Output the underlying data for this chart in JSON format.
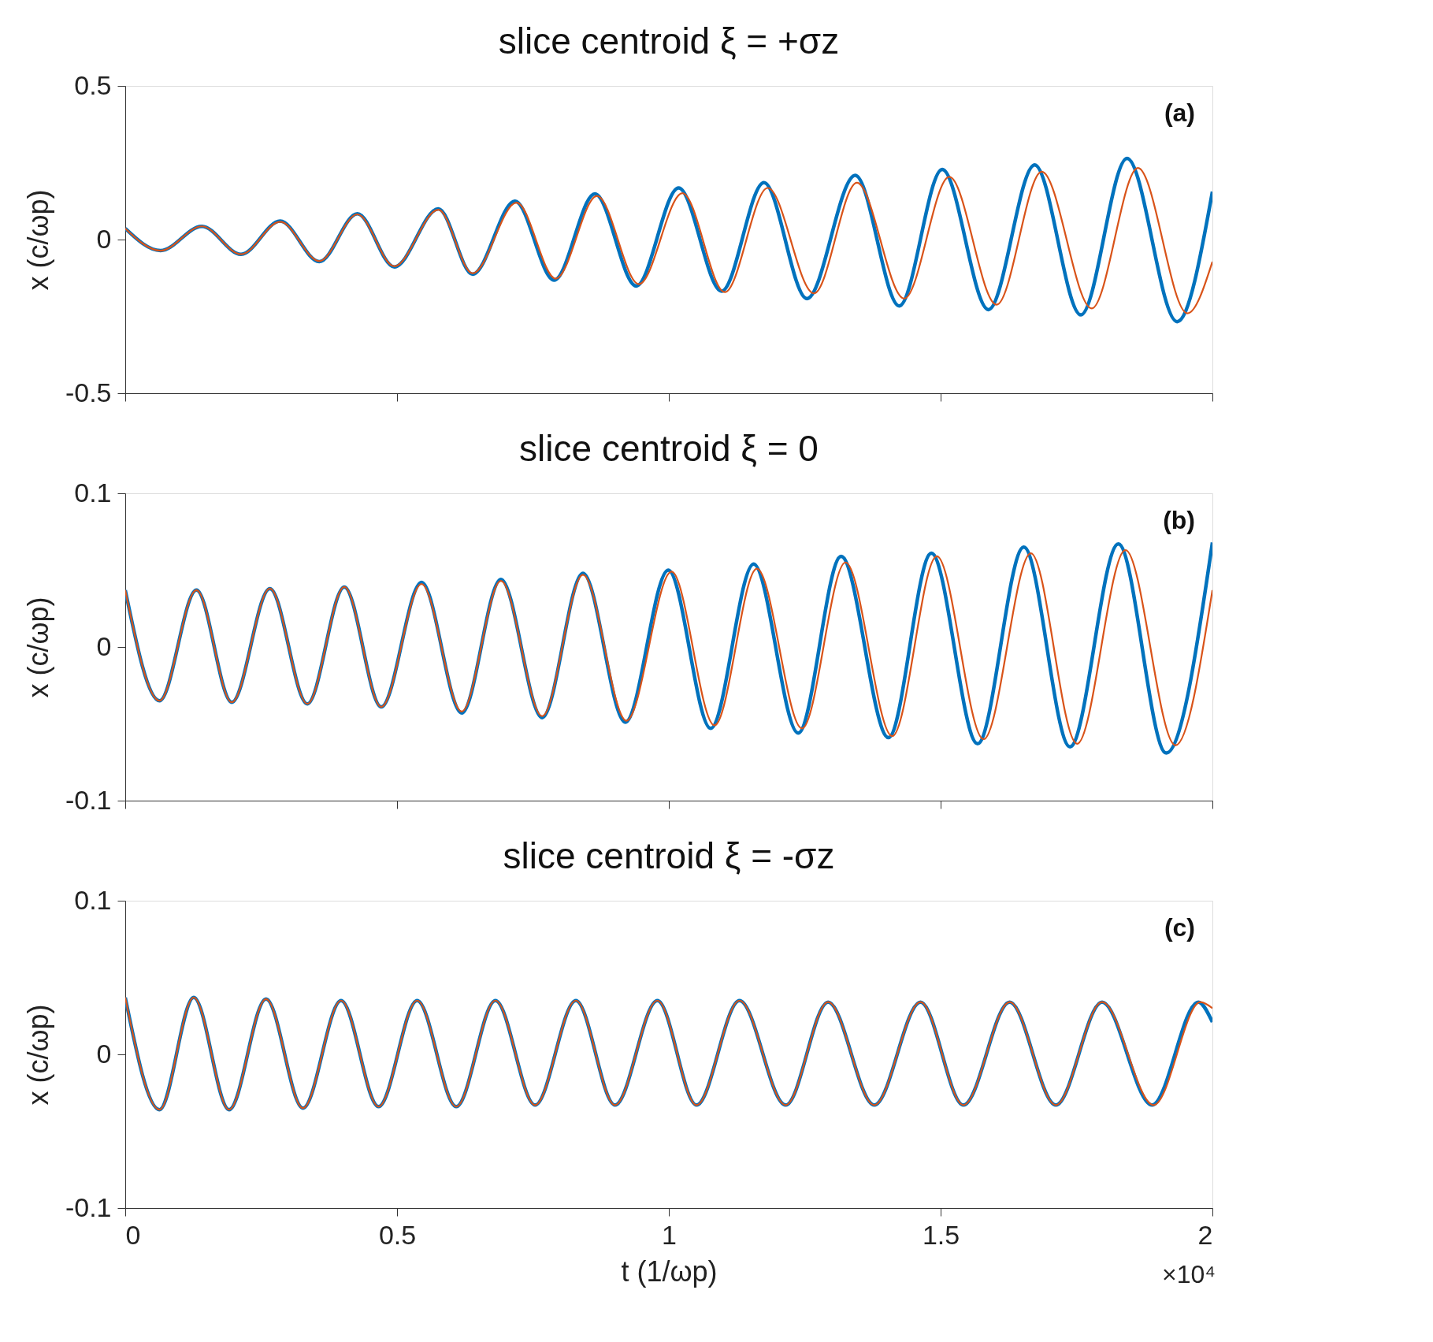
{
  "chart_data": [
    {
      "type": "line",
      "title": "slice centroid ξ = +σz",
      "ylabel": "x (c/ωp)",
      "annotations": [
        "(a)"
      ],
      "xlim": [
        0,
        2
      ],
      "xticks": [
        0,
        0.5,
        1,
        1.5,
        2
      ],
      "ylim": [
        -0.5,
        0.5
      ],
      "yticks": [
        -0.5,
        0,
        0.5
      ],
      "tick_labels": "y",
      "grid": false,
      "legend": false,
      "line_style": "solid",
      "series": [
        {
          "color": "#0072bd",
          "x": [
            0,
            0.065,
            0.141,
            0.213,
            0.285,
            0.357,
            0.427,
            0.495,
            0.576,
            0.639,
            0.717,
            0.789,
            0.864,
            0.94,
            1.018,
            1.097,
            1.175,
            1.254,
            1.343,
            1.424,
            1.503,
            1.588,
            1.673,
            1.758,
            1.843,
            1.935,
            2.0
          ],
          "values": [
            0.036,
            -0.036,
            0.043,
            -0.048,
            0.06,
            -0.072,
            0.084,
            -0.089,
            0.1,
            -0.113,
            0.125,
            -0.132,
            0.149,
            -0.151,
            0.168,
            -0.168,
            0.185,
            -0.192,
            0.209,
            -0.216,
            0.228,
            -0.228,
            0.243,
            -0.245,
            0.264,
            -0.267,
            0.156
          ]
        },
        {
          "color": "#d95319",
          "x": [
            0,
            0.065,
            0.141,
            0.213,
            0.285,
            0.357,
            0.427,
            0.495,
            0.576,
            0.639,
            0.72,
            0.792,
            0.868,
            0.945,
            1.025,
            1.103,
            1.182,
            1.267,
            1.346,
            1.433,
            1.516,
            1.603,
            1.686,
            1.778,
            1.863,
            1.954,
            2.0
          ],
          "values": [
            0.036,
            -0.036,
            0.043,
            -0.048,
            0.058,
            -0.07,
            0.082,
            -0.087,
            0.097,
            -0.11,
            0.12,
            -0.127,
            0.142,
            -0.145,
            0.151,
            -0.171,
            0.168,
            -0.175,
            0.185,
            -0.192,
            0.204,
            -0.212,
            0.221,
            -0.224,
            0.233,
            -0.24,
            -0.072
          ]
        }
      ]
    },
    {
      "type": "line",
      "title": "slice centroid ξ = 0",
      "ylabel": "x (c/ωp)",
      "annotations": [
        "(b)"
      ],
      "xlim": [
        0,
        2
      ],
      "xticks": [
        0,
        0.5,
        1,
        1.5,
        2
      ],
      "ylim": [
        -0.1,
        0.1
      ],
      "yticks": [
        -0.1,
        0,
        0.1
      ],
      "tick_labels": "y",
      "grid": false,
      "legend": false,
      "line_style": "solid",
      "series": [
        {
          "color": "#0072bd",
          "x": [
            0,
            0.063,
            0.131,
            0.196,
            0.266,
            0.335,
            0.403,
            0.471,
            0.545,
            0.619,
            0.691,
            0.767,
            0.842,
            0.92,
            0.999,
            1.077,
            1.156,
            1.238,
            1.317,
            1.404,
            1.483,
            1.568,
            1.653,
            1.738,
            1.827,
            1.915,
            2.0
          ],
          "values": [
            0.037,
            -0.035,
            0.037,
            -0.036,
            0.038,
            -0.037,
            0.039,
            -0.039,
            0.042,
            -0.043,
            0.044,
            -0.046,
            0.048,
            -0.049,
            0.05,
            -0.053,
            0.054,
            -0.056,
            0.059,
            -0.059,
            0.061,
            -0.063,
            0.065,
            -0.065,
            0.067,
            -0.069,
            0.068
          ]
        },
        {
          "color": "#d95319",
          "x": [
            0,
            0.063,
            0.131,
            0.196,
            0.266,
            0.335,
            0.403,
            0.471,
            0.545,
            0.619,
            0.691,
            0.767,
            0.842,
            0.922,
            1.005,
            1.084,
            1.162,
            1.245,
            1.325,
            1.411,
            1.493,
            1.579,
            1.666,
            1.751,
            1.84,
            1.932,
            2.0
          ],
          "values": [
            0.037,
            -0.035,
            0.037,
            -0.036,
            0.038,
            -0.037,
            0.039,
            -0.039,
            0.041,
            -0.042,
            0.043,
            -0.045,
            0.047,
            -0.048,
            0.049,
            -0.051,
            0.051,
            -0.053,
            0.055,
            -0.058,
            0.059,
            -0.06,
            0.061,
            -0.063,
            0.063,
            -0.064,
            0.037
          ]
        }
      ]
    },
    {
      "type": "line",
      "title": "slice centroid ξ = -σz",
      "ylabel": "x (c/ωp)",
      "xlabel": "t (1/ωp)",
      "annotations": [
        "(c)",
        "×10⁴"
      ],
      "xlim": [
        0,
        2
      ],
      "xticks": [
        0,
        0.5,
        1,
        1.5,
        2
      ],
      "ylim": [
        -0.1,
        0.1
      ],
      "yticks": [
        -0.1,
        0,
        0.1
      ],
      "grid": false,
      "legend": false,
      "line_style": "solid",
      "series": [
        {
          "color": "#0072bd",
          "x": [
            0,
            0.063,
            0.126,
            0.191,
            0.259,
            0.327,
            0.397,
            0.466,
            0.537,
            0.609,
            0.681,
            0.754,
            0.829,
            0.901,
            0.979,
            1.051,
            1.13,
            1.215,
            1.293,
            1.378,
            1.463,
            1.542,
            1.627,
            1.712,
            1.797,
            1.889,
            1.974,
            2.0
          ],
          "values": [
            0.037,
            -0.036,
            0.037,
            -0.036,
            0.036,
            -0.035,
            0.035,
            -0.034,
            0.035,
            -0.034,
            0.035,
            -0.033,
            0.035,
            -0.033,
            0.035,
            -0.033,
            0.035,
            -0.033,
            0.034,
            -0.033,
            0.034,
            -0.033,
            0.034,
            -0.033,
            0.034,
            -0.033,
            0.034,
            0.021
          ]
        },
        {
          "color": "#d95319",
          "x": [
            0,
            0.063,
            0.126,
            0.191,
            0.259,
            0.327,
            0.397,
            0.466,
            0.537,
            0.609,
            0.681,
            0.754,
            0.829,
            0.901,
            0.979,
            1.051,
            1.13,
            1.215,
            1.293,
            1.378,
            1.463,
            1.542,
            1.627,
            1.712,
            1.797,
            1.892,
            1.978,
            2.0
          ],
          "values": [
            0.037,
            -0.036,
            0.037,
            -0.036,
            0.036,
            -0.035,
            0.035,
            -0.034,
            0.035,
            -0.034,
            0.035,
            -0.033,
            0.035,
            -0.033,
            0.035,
            -0.033,
            0.035,
            -0.033,
            0.034,
            -0.033,
            0.034,
            -0.033,
            0.034,
            -0.033,
            0.034,
            -0.033,
            0.034,
            0.03
          ]
        }
      ]
    }
  ]
}
